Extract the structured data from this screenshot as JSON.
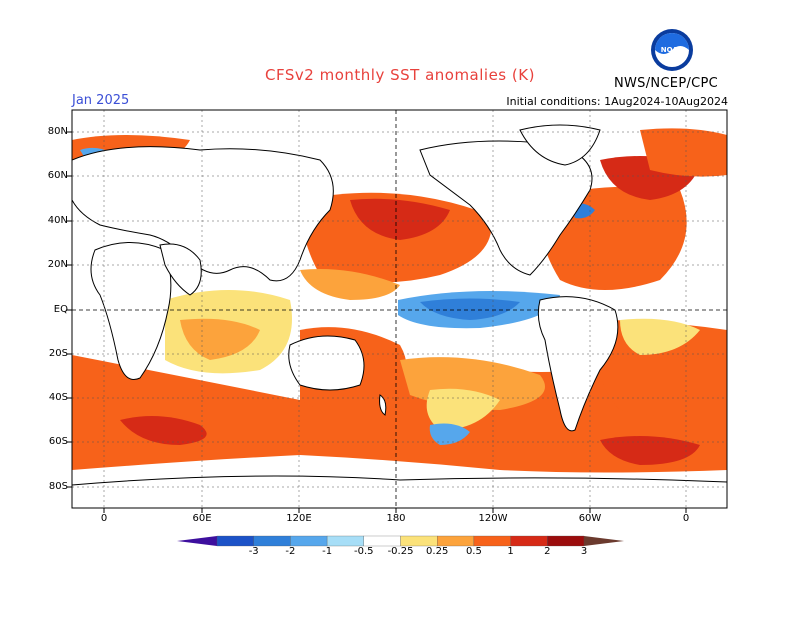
{
  "header": {
    "title": "CFSv2 monthly SST anomalies (K)",
    "month": "Jan 2025",
    "initial_conditions": "Initial conditions: 1Aug2024-10Aug2024",
    "agency": "NWS/NCEP/CPC",
    "logo_text": "NOAA"
  },
  "map": {
    "lat_labels": [
      "80N",
      "60N",
      "40N",
      "20N",
      "EQ",
      "20S",
      "40S",
      "60S",
      "80S"
    ],
    "lon_labels": [
      "0",
      "60E",
      "120E",
      "180",
      "120W",
      "60W",
      "0"
    ]
  },
  "colorbar": {
    "labels": [
      "-3",
      "-2",
      "-1",
      "-0.5",
      "-0.25",
      "0.25",
      "0.5",
      "1",
      "2",
      "3"
    ],
    "colors": [
      "#3d0f9e",
      "#1c52c7",
      "#2f7fd9",
      "#56a7ec",
      "#a7def7",
      "#ffffff",
      "#fbe27a",
      "#fca33c",
      "#f7621a",
      "#d62a16",
      "#9b0c0c",
      "#6b3a2e"
    ]
  },
  "colors": {
    "title": "#e8413c",
    "month": "#3b4fd6",
    "land": "#ffffff",
    "coast": "#000000"
  }
}
